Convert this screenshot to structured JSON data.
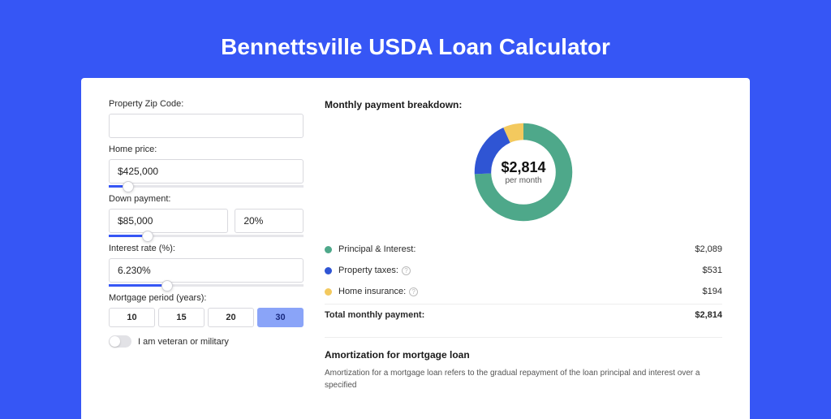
{
  "page": {
    "title": "Bennettsville USDA Loan Calculator",
    "background_color": "#3656f5",
    "card_background": "#ffffff"
  },
  "form": {
    "zip": {
      "label": "Property Zip Code:",
      "value": ""
    },
    "home_price": {
      "label": "Home price:",
      "value": "$425,000",
      "slider_pct": 10
    },
    "down_payment": {
      "label": "Down payment:",
      "amount": "$85,000",
      "percent": "20%",
      "slider_pct": 20
    },
    "interest_rate": {
      "label": "Interest rate (%):",
      "value": "6.230%",
      "slider_pct": 30
    },
    "mortgage_period": {
      "label": "Mortgage period (years):",
      "options": [
        "10",
        "15",
        "20",
        "30"
      ],
      "selected": "30"
    },
    "veteran": {
      "label": "I am veteran or military",
      "checked": false
    }
  },
  "breakdown": {
    "title": "Monthly payment breakdown:",
    "donut": {
      "amount": "$2,814",
      "sub": "per month",
      "slices": [
        {
          "key": "pi",
          "value": 2089,
          "color": "#4ea88a"
        },
        {
          "key": "tax",
          "value": 531,
          "color": "#2f55d4"
        },
        {
          "key": "ins",
          "value": 194,
          "color": "#f3c95e"
        }
      ],
      "ring_width": 20
    },
    "rows": [
      {
        "dot_color": "#4ea88a",
        "label": "Principal & Interest:",
        "info": false,
        "value": "$2,089"
      },
      {
        "dot_color": "#2f55d4",
        "label": "Property taxes:",
        "info": true,
        "value": "$531"
      },
      {
        "dot_color": "#f3c95e",
        "label": "Home insurance:",
        "info": true,
        "value": "$194"
      }
    ],
    "total": {
      "label": "Total monthly payment:",
      "value": "$2,814"
    }
  },
  "amortization": {
    "title": "Amortization for mortgage loan",
    "text": "Amortization for a mortgage loan refers to the gradual repayment of the loan principal and interest over a specified"
  }
}
